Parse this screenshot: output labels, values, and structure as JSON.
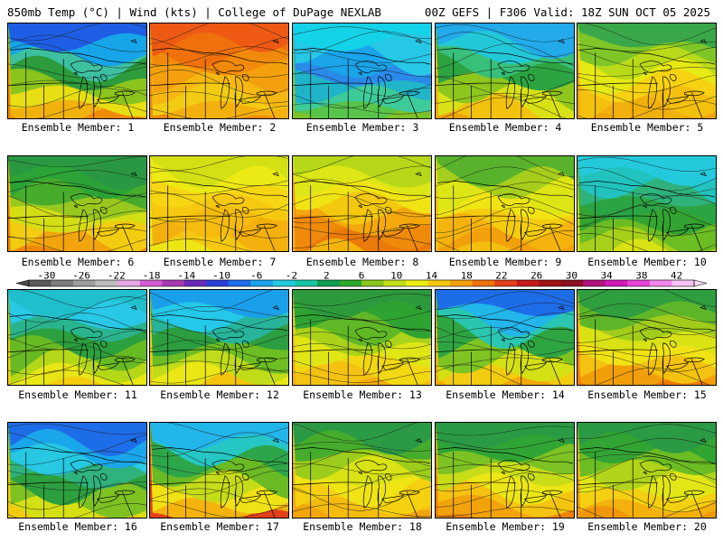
{
  "header": {
    "left": "850mb Temp (°C) | Wind (kts) | College of DuPage NEXLAB",
    "right": "00Z GEFS | F306 Valid: 18Z SUN OCT 05 2025"
  },
  "legend": {
    "ticks": [
      "-30",
      "-26",
      "-22",
      "-18",
      "-14",
      "-10",
      "-6",
      "-2",
      "2",
      "6",
      "10",
      "14",
      "18",
      "22",
      "26",
      "30",
      "34",
      "38",
      "42"
    ],
    "colors": [
      "#5a5a5a",
      "#7d7d7d",
      "#9d9d9d",
      "#bdbdbd",
      "#e4a8e4",
      "#d25bd2",
      "#a73ab3",
      "#6a2ab9",
      "#2a3fd5",
      "#1e6de8",
      "#1da3ee",
      "#24c9e0",
      "#19c6a3",
      "#0f9e52",
      "#2ca92c",
      "#88c61e",
      "#c2dc18",
      "#eceb14",
      "#f5c810",
      "#f4a00c",
      "#ee720a",
      "#e2401a",
      "#c41a1a",
      "#a11212",
      "#8c1020",
      "#b0147c",
      "#d318b8",
      "#e844d8",
      "#f286ec",
      "#f8c4f4"
    ]
  },
  "panels": [
    {
      "label": "Ensemble Member: 1",
      "palette": [
        "#1e5ee4",
        "#16a5e8",
        "#3dc0a0",
        "#2c9c3c",
        "#8cc41e",
        "#e7df14",
        "#f2b20e",
        "#f08a0a"
      ]
    },
    {
      "label": "Ensemble Member: 2",
      "palette": [
        "#ee5a14",
        "#f0700c",
        "#f18a0b",
        "#f4a00c",
        "#f6b810",
        "#f2cc12",
        "#f4b00c",
        "#f08c0a"
      ]
    },
    {
      "label": "Ensemble Member: 3",
      "palette": [
        "#14d2e8",
        "#26c8e6",
        "#1aa4ea",
        "#2a8ae8",
        "#1fb4c8",
        "#3ecb9a",
        "#57c44a",
        "#7ec22a"
      ]
    },
    {
      "label": "Ensemble Member: 4",
      "palette": [
        "#22aaea",
        "#22c8d8",
        "#38bf7a",
        "#2da442",
        "#8ec61e",
        "#d8e214",
        "#f2c20e",
        "#f2a40c"
      ]
    },
    {
      "label": "Ensemble Member: 5",
      "palette": [
        "#3aa84a",
        "#7ec628",
        "#b8da18",
        "#e6e914",
        "#f6d212",
        "#f4c00e",
        "#f2b00c",
        "#f0a20b"
      ]
    },
    {
      "label": "Ensemble Member: 6",
      "palette": [
        "#2a9842",
        "#2ba336",
        "#47ac2c",
        "#98c81e",
        "#d4de14",
        "#f2cc10",
        "#f2a40c",
        "#f0880a"
      ]
    },
    {
      "label": "Ensemble Member: 7",
      "palette": [
        "#d2e014",
        "#ecea14",
        "#f6d612",
        "#f6c810",
        "#f5bc0e",
        "#f4b00c",
        "#f4c810",
        "#ede614"
      ]
    },
    {
      "label": "Ensemble Member: 8",
      "palette": [
        "#b6d818",
        "#dde616",
        "#f0e414",
        "#f4c80f",
        "#f4a80c",
        "#ef8a0a",
        "#ea7a0a",
        "#f4b40d"
      ]
    },
    {
      "label": "Ensemble Member: 9",
      "palette": [
        "#58b22c",
        "#a6ce1c",
        "#dde614",
        "#f0e414",
        "#f4cc10",
        "#f4b40d",
        "#f2a00b",
        "#f4c00f"
      ]
    },
    {
      "label": "Ensemble Member: 10",
      "palette": [
        "#24cadc",
        "#22c3be",
        "#2fb37a",
        "#2ba444",
        "#33a332",
        "#6cbc24",
        "#a6d01a",
        "#d8e214"
      ]
    },
    {
      "label": "Ensemble Member: 11",
      "palette": [
        "#20bfcc",
        "#28c8e6",
        "#2ab48e",
        "#2c9f3e",
        "#68ba24",
        "#b4d818",
        "#e8e614",
        "#f4cc10"
      ]
    },
    {
      "label": "Ensemble Member: 12",
      "palette": [
        "#1aa0ea",
        "#24c8e8",
        "#28b49a",
        "#2c9e40",
        "#6cbe22",
        "#c0dc18",
        "#eae714",
        "#f4c40e"
      ]
    },
    {
      "label": "Ensemble Member: 13",
      "palette": [
        "#2c9a3c",
        "#2fa332",
        "#60b826",
        "#aad21a",
        "#e0e616",
        "#f2d812",
        "#f4c210",
        "#f2ac0c"
      ]
    },
    {
      "label": "Ensemble Member: 14",
      "palette": [
        "#1e6de8",
        "#22b6ea",
        "#2ac6b0",
        "#2fa542",
        "#7ec422",
        "#d4e014",
        "#f2cc10",
        "#f2a80c"
      ]
    },
    {
      "label": "Ensemble Member: 15",
      "palette": [
        "#2f9e3e",
        "#5eb628",
        "#a0cc1c",
        "#d8e214",
        "#f0e214",
        "#f4c210",
        "#f29e0b",
        "#ee7c0a"
      ]
    },
    {
      "label": "Ensemble Member: 16",
      "palette": [
        "#1e6de8",
        "#1aa6ea",
        "#26c8e2",
        "#2fb27c",
        "#2c9f3e",
        "#7ec222",
        "#d4e014",
        "#f2ca10"
      ]
    },
    {
      "label": "Ensemble Member: 17",
      "palette": [
        "#22b6ea",
        "#26c6c4",
        "#2da64a",
        "#6aba24",
        "#c6dc18",
        "#f0e214",
        "#f4b40d",
        "#e2401a"
      ]
    },
    {
      "label": "Ensemble Member: 18",
      "palette": [
        "#2a9a44",
        "#46ac2c",
        "#9ccc1c",
        "#d8e214",
        "#f0e414",
        "#f4d010",
        "#f4bc0e",
        "#f2a60c"
      ]
    },
    {
      "label": "Ensemble Member: 19",
      "palette": [
        "#2a9a44",
        "#30a434",
        "#7cc222",
        "#c8dc18",
        "#ece614",
        "#f4c410",
        "#f2a20b",
        "#ee820a"
      ]
    },
    {
      "label": "Ensemble Member: 20",
      "palette": [
        "#2a9a44",
        "#32a434",
        "#6cbc24",
        "#b0d41a",
        "#e2e616",
        "#f4d011",
        "#f4b00c",
        "#f0960a"
      ]
    }
  ]
}
